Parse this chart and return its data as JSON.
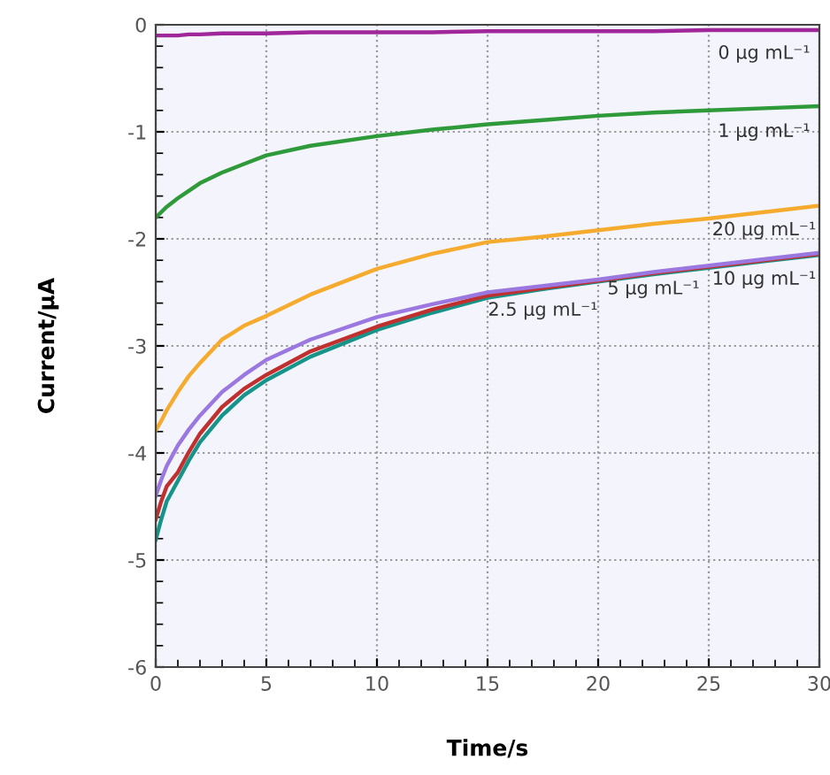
{
  "chart_data": {
    "type": "line",
    "xlabel": "Time/s",
    "ylabel": "Current/μA",
    "x": [
      0,
      0.25,
      0.5,
      1,
      1.5,
      2,
      3,
      4,
      5,
      7,
      10,
      12.5,
      15,
      17.5,
      20,
      22.5,
      25,
      27.5,
      30
    ],
    "series": [
      {
        "name": "0 μg mL⁻¹",
        "color": "#a0279a",
        "values": [
          -0.1,
          -0.1,
          -0.1,
          -0.1,
          -0.09,
          -0.09,
          -0.08,
          -0.08,
          -0.08,
          -0.07,
          -0.07,
          -0.07,
          -0.06,
          -0.06,
          -0.06,
          -0.06,
          -0.05,
          -0.05,
          -0.05
        ]
      },
      {
        "name": "1 μg mL⁻¹",
        "color": "#2e9a3a",
        "values": [
          -1.8,
          -1.75,
          -1.7,
          -1.62,
          -1.55,
          -1.48,
          -1.38,
          -1.3,
          -1.22,
          -1.13,
          -1.04,
          -0.98,
          -0.93,
          -0.89,
          -0.85,
          -0.82,
          -0.8,
          -0.78,
          -0.76
        ]
      },
      {
        "name": "20 μg mL⁻¹",
        "color": "#f5ab2e",
        "values": [
          -3.79,
          -3.7,
          -3.6,
          -3.43,
          -3.28,
          -3.16,
          -2.94,
          -2.81,
          -2.72,
          -2.52,
          -2.28,
          -2.14,
          -2.03,
          -1.98,
          -1.92,
          -1.86,
          -1.81,
          -1.75,
          -1.69
        ]
      },
      {
        "name": "2.5 μg mL⁻¹",
        "color": "#16948a",
        "values": [
          -4.81,
          -4.62,
          -4.45,
          -4.26,
          -4.07,
          -3.9,
          -3.65,
          -3.46,
          -3.32,
          -3.1,
          -2.85,
          -2.69,
          -2.55,
          -2.47,
          -2.4,
          -2.33,
          -2.27,
          -2.21,
          -2.15
        ]
      },
      {
        "name": "5 μg mL⁻¹",
        "color": "#c0302e",
        "values": [
          -4.62,
          -4.45,
          -4.31,
          -4.18,
          -3.99,
          -3.82,
          -3.57,
          -3.4,
          -3.27,
          -3.05,
          -2.82,
          -2.66,
          -2.53,
          -2.46,
          -2.39,
          -2.32,
          -2.26,
          -2.2,
          -2.14
        ]
      },
      {
        "name": "10 μg mL⁻¹",
        "color": "#9a78e0",
        "values": [
          -4.4,
          -4.25,
          -4.12,
          -3.93,
          -3.78,
          -3.65,
          -3.43,
          -3.27,
          -3.13,
          -2.94,
          -2.73,
          -2.61,
          -2.5,
          -2.44,
          -2.38,
          -2.31,
          -2.25,
          -2.19,
          -2.13
        ]
      }
    ],
    "xlim": [
      0,
      30
    ],
    "xticks": [
      0,
      5,
      10,
      15,
      20,
      25,
      30
    ],
    "ylim": [
      -6,
      0
    ],
    "yticks": [
      -6,
      -5,
      -4,
      -3,
      -2,
      -1,
      0
    ],
    "grid": true,
    "marker": "none",
    "line_style": "solid"
  }
}
